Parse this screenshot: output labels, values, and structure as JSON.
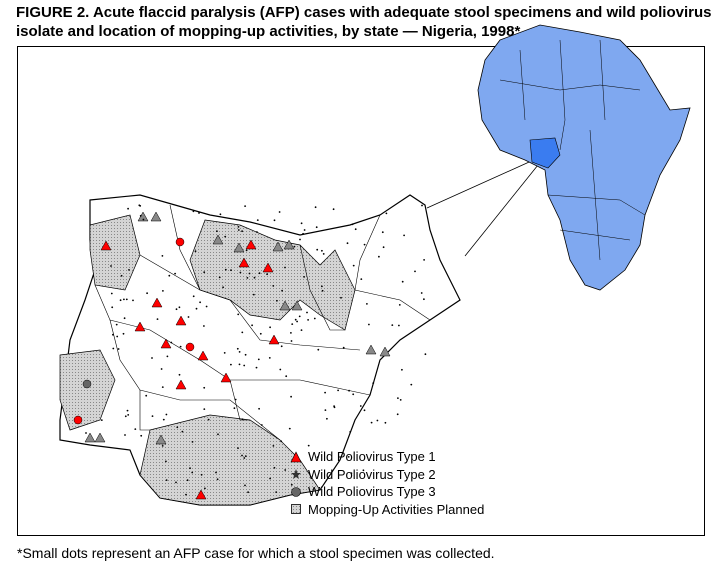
{
  "title": "FIGURE 2. Acute flaccid paralysis (AFP) cases with adequate stool specimens and wild poliovirus isolate and location of mopping-up activities, by state — Nigeria, 1998*",
  "footnote": "*Small dots represent an AFP case for which a stool specimen was collected.",
  "legend": [
    {
      "label": "Wild Poliovirus Type 1",
      "symbol": "triangle",
      "color": "#ff0000"
    },
    {
      "label": "Wild Poliovirus Type 2",
      "symbol": "star",
      "color": "#555555"
    },
    {
      "label": "Wild Poliovirus Type 3",
      "symbol": "circle",
      "color": "#666666"
    },
    {
      "label": "Mopping-Up Activities Planned",
      "symbol": "hatched-square",
      "color": "#cccccc"
    }
  ],
  "colors": {
    "mopping_up": "#c8c8c8",
    "africa": "#7fa8f0",
    "nigeria_highlight": "#3a7cf0",
    "type1": "#ff0000"
  }
}
